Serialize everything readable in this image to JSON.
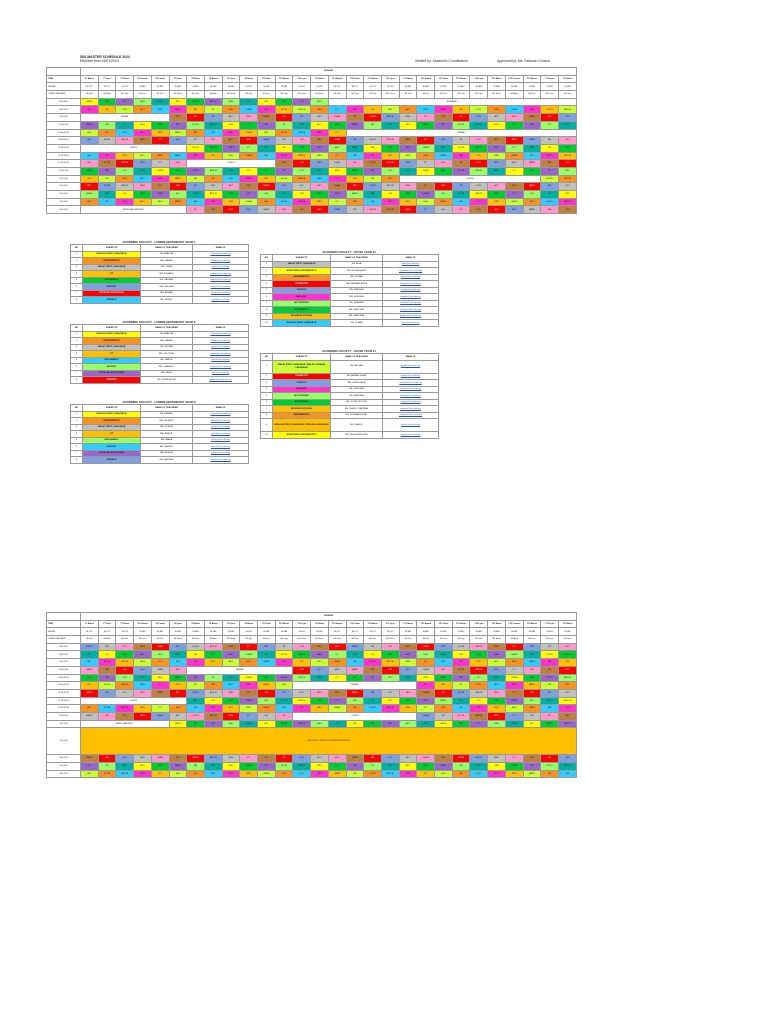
{
  "header": {
    "title": "SIIS MASTER SCHEDULE 2024",
    "effective": "Effective from 03/01/2024",
    "verified": "Verified by: Academic Coordinators",
    "approved": "Approved by: Ms. Deborah Gordon"
  },
  "monday": {
    "day_label": "MONDAY",
    "row_labels": [
      "TIME",
      "VENUE",
      "CLASS TEACHER"
    ],
    "class_headers": [
      "Y7 Aliens",
      "Y7 Lynx",
      "Y7 Moon",
      "Y8 Comets",
      "Y8 Comet",
      "Y8 Lynx",
      "Y8 Moon",
      "Y9 Aliens",
      "Y9 Lynx",
      "Y9 Moon",
      "Y9 Orion",
      "Y10 Aliens",
      "Y10 Lynx",
      "Y10 Moon",
      "Y10 Aquila",
      "Y10 Orion",
      "Y11 Aliens",
      "Y11 Lynx",
      "Y11 Moon",
      "Y11 Aquila",
      "Y11 Orion",
      "Y12 Aliens",
      "Y12 Lynx",
      "Y12 Moon",
      "Y12 Comets",
      "Y13 Aliens",
      "Y13 Lynx",
      "Y13 Moon"
    ],
    "venues": [
      "SL7C1",
      "SL7C2",
      "SL7C3",
      "SL4B1",
      "SL4B2",
      "SL4B3",
      "SL2A1",
      "SL2A2",
      "SL2A3",
      "SL2B1",
      "SL1A1",
      "SL1A2",
      "SL1B1",
      "SL1B2",
      "SL1C1",
      "SL1C2",
      "SL2C1",
      "SL2C2",
      "SL3A1",
      "SL3A2",
      "SL3B1",
      "SL3B2",
      "SL4A1",
      "SL4A2",
      "SL5A1",
      "SL5A2",
      "SL5B1",
      "SL5B2"
    ],
    "teachers": [
      "Ms Siti",
      "Mr Aziz",
      "Ms Nur",
      "Ms Lim",
      "Mr Tan",
      "Ms Hana",
      "Mr Ravi",
      "Ms Aini",
      "Mr Wong",
      "Ms Ng",
      "Mr Lee",
      "Ms Ong",
      "Mr Chan",
      "Ms Kaur",
      "Mr Goh",
      "Ms Yap",
      "Mr Das",
      "Ms Chua",
      "Mr Teo",
      "Ms Ho",
      "Mr Lim",
      "Ms Tay",
      "Mr Koh",
      "Ms Seah",
      "Mr Ang",
      "Ms Foo",
      "Mr Low",
      "Ms Sim"
    ],
    "times": [
      "8:00-8:30",
      "8:30-9:00",
      "9:00-9:30",
      "9:30-10:00",
      "10:00-10:30",
      "10:30-11:00",
      "11:00-11:30",
      "11:30-12:00",
      "12:00-12:30",
      "12:30-1:00",
      "1:00-1:30",
      "1:30-2:00",
      "2:00-2:30",
      "2:30-3:00",
      "3:00-3:30"
    ],
    "assembly": "ASSEMBLY",
    "break": "BREAK",
    "lunch": "LUNCH",
    "mastery": "PERSONAL MASTERY"
  },
  "tuesday": {
    "day_label": "TUESDAY",
    "break": "BREAK",
    "lunch": "LUNCH",
    "mastery": "BASIC MASTERY",
    "band": "SIIS ECA & CCA SLOT: SPORTS ACTIVITIES",
    "times": [
      "8:00-8:30",
      "8:30-9:00",
      "9:00-9:30",
      "9:30-10:00",
      "10:00-10:30",
      "10:30-11:00",
      "11:00-11:30",
      "11:30-12:00",
      "12:00-12:30",
      "12:30-1:00",
      "1:00-1:30",
      "1:30-2:00",
      "2:00-2:30",
      "2:30-3:00",
      "3:00-3:30"
    ]
  },
  "faculty_headers": {
    "no": "NO",
    "subjects": "SUBJECTS",
    "teacher": "NAME OF TEACHERS",
    "email": "EMAIL ID"
  },
  "faculty": [
    {
      "title": "ACADEMIC FACULTY - LOWER SECONDARY YEAR 7",
      "rows": [
        [
          "1",
          "ENGLISH FIRST LANGUAGE",
          "MS. AZALINA",
          "azalina@siis.edu.my",
          "c-yel"
        ],
        [
          "2",
          "MATHEMATICS",
          "MR. HAZAM",
          "hazam@siis.edu.my",
          "c-or"
        ],
        [
          "3",
          "MALAY FIRST LANGUAGE",
          "MS. LINDA",
          "linda@siis.edu.my",
          "c-gry"
        ],
        [
          "4",
          "ICT",
          "MR. SUMATHI",
          "sumathi@siis.edu.my",
          "c-ora2"
        ],
        [
          "5",
          "GEOGRAPHY",
          "MS. SALMAH",
          "salmah@siis.edu.my",
          "c-grn"
        ],
        [
          "6",
          "HISTORY",
          "MR. TAN KAH",
          "tankah@siis.edu.my",
          "c-blu"
        ],
        [
          "7",
          "PHYSICAL EDUCATION",
          "MR. ANWAR",
          "anwar@siis.edu.my",
          "c-red"
        ],
        [
          "8",
          "SCIENCE",
          "MS. NURUL",
          "nurul@siis.edu.my",
          "c-cya"
        ]
      ]
    },
    {
      "title": "ACADEMIC FACULTY - LOWER SECONDARY YEAR 8",
      "rows": [
        [
          "1",
          "ENGLISH FIRST LANGUAGE",
          "MS. AZALINA",
          "azalina@siis.edu.my",
          "c-yel"
        ],
        [
          "2",
          "MATHEMATICS",
          "MR. HAZAM",
          "hazam@siis.edu.my",
          "c-or"
        ],
        [
          "3",
          "MALAY FIRST LANGUAGE",
          "MS. ROSNA",
          "rosna@siis.edu.my",
          "c-gry"
        ],
        [
          "4",
          "ICT",
          "MS. LEE TENG",
          "leeteng@siis.edu.my",
          "c-ora2"
        ],
        [
          "5",
          "GEOGRAPHY",
          "MR. SAIFUL",
          "saiful@siis.edu.my",
          "c-cya"
        ],
        [
          "6",
          "HISTORY",
          "MS. SHAMSUL",
          "shamsul@siis.edu.my",
          "c-lgr"
        ],
        [
          "7",
          "PHYSICAL EDUCATION",
          "MR. FARIS",
          "faris@siis.edu.my",
          "c-pur"
        ],
        [
          "8",
          "SCIENCE",
          "MS. GEORGE LIM",
          "georgelim@siis.edu.my",
          "c-red"
        ]
      ]
    },
    {
      "title": "ACADEMIC FACULTY - LOWER SECONDARY YEAR 9",
      "rows": [
        [
          "1",
          "ENGLISH FIRST LANGUAGE",
          "MS. KARMEL",
          "karmel@siis.edu.my",
          "c-yel"
        ],
        [
          "2",
          "MATHEMATICS",
          "MR. JEFFREY",
          "jeffrey@siis.edu.my",
          "c-or"
        ],
        [
          "3",
          "MALAY FIRST LANGUAGE",
          "MS. NORIZA",
          "noriza@siis.edu.my",
          "c-gry"
        ],
        [
          "4",
          "ICT",
          "MR. AMIRUL",
          "amirul@siis.edu.my",
          "c-ora2"
        ],
        [
          "5",
          "GEOGRAPHY",
          "MS. MARIA",
          "maria@siis.edu.my",
          "c-lgr"
        ],
        [
          "6",
          "HISTORY",
          "MR. NAZRUL",
          "nazrul@siis.edu.my",
          "c-cya"
        ],
        [
          "7",
          "PHYSICAL EDUCATION",
          "MR. RAJESH",
          "rajesh@siis.edu.my",
          "c-pur"
        ],
        [
          "8",
          "SCIENCE",
          "MS. FAUZIAH",
          "fauziah@siis.edu.my",
          "c-blu"
        ]
      ]
    },
    {
      "title": "ACADEMIC FACULTY - IGCSE YEAR 10",
      "rows": [
        [
          "1",
          "MALAY FIRST LANGUAGE",
          "MS. AIDA",
          "aida@siis.edu.my",
          "c-gry"
        ],
        [
          "2",
          "ADDITIONAL MATHEMATICS",
          "MS. NOR ASHIKIN",
          "norashikin@siis.edu.my",
          "c-yel"
        ],
        [
          "3",
          "MATHEMATICS",
          "MR. KUMAR",
          "kumar@siis.edu.my",
          "c-or"
        ],
        [
          "4",
          "CHEMISTRY",
          "MR. FATIMAH AZIZA",
          "fatimah@siis.edu.my",
          "c-red"
        ],
        [
          "5",
          "PHYSICS",
          "MR. FARIDAH",
          "faridah@siis.edu.my",
          "c-blu"
        ],
        [
          "6",
          "BIOLOGY",
          "MR. HONGDA",
          "hongda@siis.edu.my",
          "c-mag"
        ],
        [
          "7",
          "ACCOUNTING",
          "MS. SAKINAH",
          "sakinah@siis.edu.my",
          "c-lgr"
        ],
        [
          "8",
          "ECONOMICS",
          "MS. SIEW YEN",
          "siewyen@siis.edu.my",
          "c-grn"
        ],
        [
          "9",
          "BUSINESS STUDIES",
          "MR. GARDENA",
          "gardena@siis.edu.my",
          "c-ora2"
        ],
        [
          "10",
          "ENGLISH FIRST LANGUAGE",
          "MS. CLARA",
          "clara@siis.edu.my",
          "c-cya"
        ]
      ]
    },
    {
      "title": "ACADEMIC FACULTY - IGCSE YEAR 11",
      "rows": [
        [
          "1",
          "MALAY FIRST LANGUAGE / MALAY FOREIGN LANGUAGE",
          "MS. AFIQAH",
          "afiqah@siis.edu.my",
          "c-lime"
        ],
        [
          "2",
          "CHEMISTRY",
          "MR. ARMAN SUHAI",
          "arman@siis.edu.my",
          "c-red"
        ],
        [
          "3",
          "PHYSICS",
          "MR. NURUL AIDA",
          "nurulaida@siis.edu.my",
          "c-blu"
        ],
        [
          "4",
          "BIOLOGY",
          "MS. SUE MIAN",
          "suemian@siis.edu.my",
          "c-mag"
        ],
        [
          "5",
          "ACCOUNTING",
          "MS. NAZRINA",
          "nazrina@siis.edu.my",
          "c-lgr"
        ],
        [
          "6",
          "ECONOMICS",
          "MR. JOCELYN JONG",
          "jocelyn@siis.edu.my",
          "c-grn"
        ],
        [
          "7",
          "BUSINESS STUDIES",
          "MS. NURUL SYAFIRAH",
          "syafirah@siis.edu.my",
          "c-ora2"
        ],
        [
          "8",
          "MATHEMATICS",
          "MS. SUDHANSHI PAL",
          "sudhanshi@siis.edu.my",
          "c-or"
        ],
        [
          "9",
          "ENGLISH FIRST LANGUAGE / ENGLISH LANGUAGE",
          "MS. JANICE",
          "janice@siis.edu.my",
          "c-ora2"
        ],
        [
          "10",
          "ADDITIONAL MATHEMATICS",
          "MR. ENG ZHENG WEI",
          "engzw@siis.edu.my",
          "c-yel"
        ]
      ]
    }
  ],
  "colors": {
    "primary": "#ffc000",
    "link": "#1a4fd6"
  }
}
